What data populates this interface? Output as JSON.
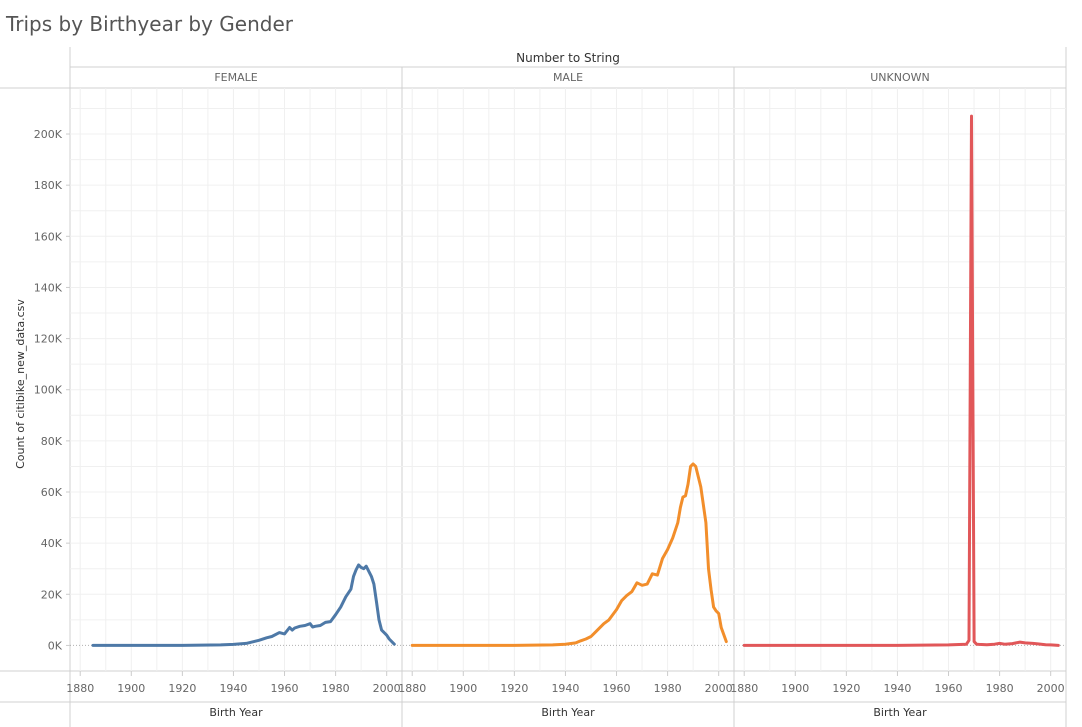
{
  "page": {
    "title": "Trips by Birthyear by Gender"
  },
  "chart_data": {
    "type": "line",
    "title": "Trips by Birthyear by Gender",
    "column_header": "Number to String",
    "xlabel": "Birth Year",
    "ylabel": "Count of citibike_new_data.csv",
    "xlim": [
      1876,
      2006
    ],
    "ylim": [
      -10000,
      218000
    ],
    "x_ticks": [
      1880,
      1900,
      1920,
      1940,
      1960,
      1980,
      2000
    ],
    "y_ticks": [
      0,
      20000,
      40000,
      60000,
      80000,
      100000,
      120000,
      140000,
      160000,
      180000,
      200000
    ],
    "y_tick_labels": [
      "0K",
      "20K",
      "40K",
      "60K",
      "80K",
      "100K",
      "120K",
      "140K",
      "160K",
      "180K",
      "200K"
    ],
    "grid": true,
    "series": [
      {
        "name": "FEMALE",
        "color": "#4e79a7",
        "x": [
          1885,
          1900,
          1920,
          1935,
          1940,
          1945,
          1948,
          1950,
          1953,
          1955,
          1958,
          1960,
          1962,
          1963,
          1964,
          1966,
          1968,
          1970,
          1971,
          1972,
          1974,
          1976,
          1978,
          1980,
          1982,
          1984,
          1986,
          1987,
          1988,
          1989,
          1990,
          1991,
          1992,
          1994,
          1995,
          1996,
          1997,
          1998,
          1999,
          2000,
          2001,
          2003
        ],
        "values": [
          0,
          0,
          0,
          200,
          400,
          800,
          1500,
          2000,
          3000,
          3500,
          5000,
          4500,
          7000,
          6000,
          6800,
          7500,
          7800,
          8500,
          7200,
          7500,
          7800,
          9000,
          9300,
          12000,
          15000,
          19000,
          22000,
          27000,
          29500,
          31500,
          30500,
          30000,
          31000,
          27000,
          24000,
          17000,
          10000,
          6000,
          5000,
          4000,
          2500,
          500
        ]
      },
      {
        "name": "MALE",
        "color": "#f28e2b",
        "x": [
          1880,
          1900,
          1920,
          1935,
          1940,
          1944,
          1946,
          1948,
          1950,
          1952,
          1955,
          1957,
          1960,
          1962,
          1964,
          1966,
          1968,
          1970,
          1972,
          1974,
          1976,
          1978,
          1980,
          1982,
          1984,
          1985,
          1986,
          1987,
          1988,
          1989,
          1990,
          1991,
          1993,
          1995,
          1996,
          1997,
          1998,
          1999,
          2000,
          2001,
          2003
        ],
        "values": [
          0,
          0,
          0,
          200,
          500,
          1000,
          1800,
          2500,
          3500,
          5500,
          8500,
          10000,
          14000,
          17500,
          19500,
          21000,
          24500,
          23500,
          24000,
          28000,
          27500,
          34000,
          37500,
          42000,
          48000,
          54000,
          58000,
          58500,
          63000,
          70000,
          71000,
          70000,
          62000,
          48000,
          30000,
          22000,
          15000,
          13500,
          12500,
          7000,
          1500
        ]
      },
      {
        "name": "UNKNOWN",
        "color": "#e15759",
        "x": [
          1880,
          1900,
          1920,
          1940,
          1960,
          1967,
          1968,
          1969,
          1970,
          1971,
          1972,
          1975,
          1978,
          1980,
          1982,
          1985,
          1988,
          1990,
          1993,
          1995,
          1998,
          2000,
          2003
        ],
        "values": [
          0,
          0,
          0,
          0,
          200,
          500,
          2000,
          207000,
          1500,
          500,
          400,
          300,
          500,
          800,
          500,
          700,
          1300,
          1000,
          800,
          600,
          300,
          200,
          0
        ]
      }
    ]
  }
}
